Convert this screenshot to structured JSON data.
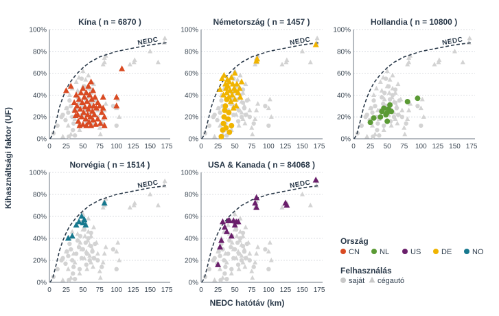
{
  "chart_data": {
    "type": "scatter",
    "xlabel": "NEDC hatótáv (km)",
    "ylabel": "Kihasználtsági faktor (UF)",
    "xlim": [
      0,
      180
    ],
    "ylim": [
      0,
      100
    ],
    "x_ticks": [
      "0",
      "25",
      "50",
      "75",
      "100",
      "125",
      "150",
      "175"
    ],
    "y_ticks": [
      "0%",
      "20%",
      "40%",
      "60%",
      "80%",
      "100%"
    ],
    "curve_label": "NEDC",
    "curve": [
      [
        1,
        0
      ],
      [
        5,
        4
      ],
      [
        10,
        16
      ],
      [
        15,
        29
      ],
      [
        20,
        38
      ],
      [
        25,
        45
      ],
      [
        30,
        51
      ],
      [
        40,
        59
      ],
      [
        50,
        65
      ],
      [
        60,
        70
      ],
      [
        75,
        75
      ],
      [
        100,
        80
      ],
      [
        125,
        83
      ],
      [
        150,
        86
      ],
      [
        175,
        88
      ]
    ],
    "legend": {
      "country_title": "Ország",
      "countries": [
        {
          "code": "CN",
          "color": "#d94a22"
        },
        {
          "code": "NL",
          "color": "#5a9a34"
        },
        {
          "code": "US",
          "color": "#6a1f6b"
        },
        {
          "code": "DE",
          "color": "#f0b400"
        },
        {
          "code": "NO",
          "color": "#17788e"
        }
      ],
      "usage_title": "Felhasználás",
      "usage": [
        {
          "label": "saját",
          "shape": "circle"
        },
        {
          "label": "cégautó",
          "shape": "triangle"
        }
      ]
    },
    "background_gray": {
      "circles": [
        [
          6,
          5
        ],
        [
          12,
          12
        ],
        [
          18,
          20
        ],
        [
          20,
          22
        ],
        [
          24,
          17
        ],
        [
          26,
          28
        ],
        [
          28,
          24
        ],
        [
          29,
          2
        ],
        [
          30,
          35
        ],
        [
          32,
          30
        ],
        [
          34,
          20
        ],
        [
          36,
          14
        ],
        [
          38,
          3
        ],
        [
          40,
          26
        ],
        [
          42,
          38
        ],
        [
          44,
          32
        ],
        [
          46,
          42
        ],
        [
          48,
          22
        ],
        [
          50,
          30
        ],
        [
          52,
          48
        ],
        [
          54,
          36
        ],
        [
          56,
          26
        ],
        [
          58,
          40
        ],
        [
          60,
          20
        ],
        [
          62,
          33
        ],
        [
          64,
          28
        ],
        [
          66,
          22
        ],
        [
          68,
          35
        ],
        [
          72,
          20
        ],
        [
          78,
          14
        ],
        [
          35,
          8
        ],
        [
          45,
          12
        ],
        [
          55,
          16
        ],
        [
          62,
          45
        ],
        [
          48,
          55
        ],
        [
          100,
          12
        ],
        [
          95,
          30
        ]
      ],
      "triangles": [
        [
          20,
          2
        ],
        [
          25,
          28
        ],
        [
          28,
          12
        ],
        [
          30,
          40
        ],
        [
          32,
          4
        ],
        [
          34,
          46
        ],
        [
          36,
          26
        ],
        [
          38,
          18
        ],
        [
          40,
          52
        ],
        [
          42,
          44
        ],
        [
          44,
          56
        ],
        [
          45,
          8
        ],
        [
          46,
          36
        ],
        [
          48,
          30
        ],
        [
          50,
          62
        ],
        [
          50,
          48
        ],
        [
          52,
          22
        ],
        [
          53,
          42
        ],
        [
          54,
          54
        ],
        [
          55,
          28
        ],
        [
          56,
          12
        ],
        [
          57,
          38
        ],
        [
          58,
          46
        ],
        [
          58,
          58
        ],
        [
          60,
          24
        ],
        [
          60,
          34
        ],
        [
          62,
          18
        ],
        [
          62,
          42
        ],
        [
          64,
          30
        ],
        [
          65,
          14
        ],
        [
          66,
          50
        ],
        [
          68,
          22
        ],
        [
          70,
          36
        ],
        [
          72,
          26
        ],
        [
          75,
          10
        ],
        [
          80,
          18
        ],
        [
          82,
          26
        ],
        [
          84,
          32
        ],
        [
          76,
          4
        ],
        [
          80,
          68
        ],
        [
          82,
          70
        ],
        [
          82,
          74
        ],
        [
          84,
          76
        ],
        [
          100,
          28
        ],
        [
          102,
          36
        ],
        [
          104,
          20
        ],
        [
          120,
          68
        ],
        [
          126,
          70
        ],
        [
          127,
          72
        ],
        [
          150,
          80
        ],
        [
          162,
          70
        ],
        [
          171,
          88
        ],
        [
          172,
          92
        ]
      ]
    },
    "panels": [
      {
        "title": "Kína ( n = 6870 )",
        "country": "CN",
        "points": {
          "circles": [],
          "triangles": [
            [
              25,
              44
            ],
            [
              32,
              48
            ],
            [
              37,
              33
            ],
            [
              38,
              26
            ],
            [
              39,
              21
            ],
            [
              40,
              40
            ],
            [
              41,
              30
            ],
            [
              42,
              22
            ],
            [
              43,
              16
            ],
            [
              44,
              36
            ],
            [
              45,
              12
            ],
            [
              46,
              27
            ],
            [
              47,
              42
            ],
            [
              48,
              20
            ],
            [
              49,
              33
            ],
            [
              50,
              46
            ],
            [
              50,
              13
            ],
            [
              51,
              24
            ],
            [
              52,
              38
            ],
            [
              53,
              29
            ],
            [
              54,
              18
            ],
            [
              55,
              42
            ],
            [
              55,
              12
            ],
            [
              56,
              34
            ],
            [
              57,
              22
            ],
            [
              58,
              48
            ],
            [
              58,
              27
            ],
            [
              59,
              15
            ],
            [
              60,
              40
            ],
            [
              60,
              30
            ],
            [
              61,
              20
            ],
            [
              62,
              52
            ],
            [
              62,
              12
            ],
            [
              63,
              36
            ],
            [
              64,
              25
            ],
            [
              65,
              44
            ],
            [
              65,
              17
            ],
            [
              66,
              30
            ],
            [
              67,
              22
            ],
            [
              68,
              38
            ],
            [
              69,
              13
            ],
            [
              70,
              28
            ],
            [
              72,
              33
            ],
            [
              72,
              18
            ],
            [
              75,
              30
            ],
            [
              76,
              14
            ],
            [
              78,
              24
            ],
            [
              80,
              38
            ],
            [
              80,
              28
            ],
            [
              82,
              20
            ],
            [
              82,
              12
            ],
            [
              100,
              38
            ],
            [
              100,
              30
            ],
            [
              108,
              64
            ]
          ]
        }
      },
      {
        "title": "Németország ( n = 1457 )",
        "country": "DE",
        "points": {
          "circles": [
            [
              30,
              2
            ],
            [
              32,
              8
            ],
            [
              33,
              14
            ],
            [
              34,
              20
            ],
            [
              35,
              26
            ],
            [
              36,
              30
            ],
            [
              37,
              10
            ],
            [
              38,
              36
            ],
            [
              40,
              18
            ],
            [
              41,
              24
            ],
            [
              42,
              6
            ],
            [
              45,
              12
            ]
          ],
          "triangles": [
            [
              28,
              45
            ],
            [
              31,
              55
            ],
            [
              33,
              40
            ],
            [
              34,
              58
            ],
            [
              36,
              50
            ],
            [
              37,
              46
            ],
            [
              38,
              42
            ],
            [
              39,
              54
            ],
            [
              40,
              48
            ],
            [
              41,
              38
            ],
            [
              42,
              52
            ],
            [
              43,
              44
            ],
            [
              44,
              34
            ],
            [
              45,
              56
            ],
            [
              46,
              40
            ],
            [
              47,
              50
            ],
            [
              48,
              28
            ],
            [
              49,
              46
            ],
            [
              50,
              36
            ],
            [
              50,
              60
            ],
            [
              51,
              44
            ],
            [
              52,
              30
            ],
            [
              53,
              50
            ],
            [
              55,
              42
            ],
            [
              57,
              46
            ],
            [
              58,
              38
            ],
            [
              60,
              52
            ],
            [
              82,
              71
            ],
            [
              83,
              73
            ],
            [
              170,
              86
            ]
          ]
        }
      },
      {
        "title": "Hollandia ( n = 10800 )",
        "country": "NL",
        "points": {
          "circles": [
            [
              25,
              15
            ],
            [
              30,
              19
            ],
            [
              40,
              20
            ],
            [
              42,
              25
            ],
            [
              45,
              28
            ],
            [
              48,
              22
            ],
            [
              50,
              24
            ],
            [
              50,
              16
            ],
            [
              52,
              27
            ],
            [
              54,
              31
            ],
            [
              56,
              25
            ],
            [
              80,
              34
            ],
            [
              95,
              37
            ]
          ],
          "triangles": []
        }
      },
      {
        "title": "Norvégia ( n = 1514 )",
        "country": "NO",
        "points": {
          "circles": [],
          "triangles": [
            [
              28,
              40
            ],
            [
              34,
              42
            ],
            [
              40,
              52
            ],
            [
              44,
              55
            ],
            [
              48,
              60
            ],
            [
              50,
              54
            ],
            [
              52,
              57
            ],
            [
              54,
              52
            ],
            [
              82,
              72
            ]
          ]
        }
      },
      {
        "title": "USA & Kanada ( n = 84068 )",
        "country": "US",
        "points": {
          "circles": [],
          "triangles": [
            [
              25,
              16
            ],
            [
              28,
              32
            ],
            [
              30,
              38
            ],
            [
              32,
              55
            ],
            [
              35,
              50
            ],
            [
              38,
              46
            ],
            [
              40,
              56
            ],
            [
              42,
              56
            ],
            [
              45,
              42
            ],
            [
              48,
              56
            ],
            [
              50,
              52
            ],
            [
              52,
              55
            ],
            [
              55,
              55
            ],
            [
              80,
              72
            ],
            [
              82,
              68
            ],
            [
              82,
              77
            ],
            [
              125,
              72
            ],
            [
              127,
              70
            ],
            [
              170,
              93
            ]
          ]
        }
      }
    ]
  }
}
